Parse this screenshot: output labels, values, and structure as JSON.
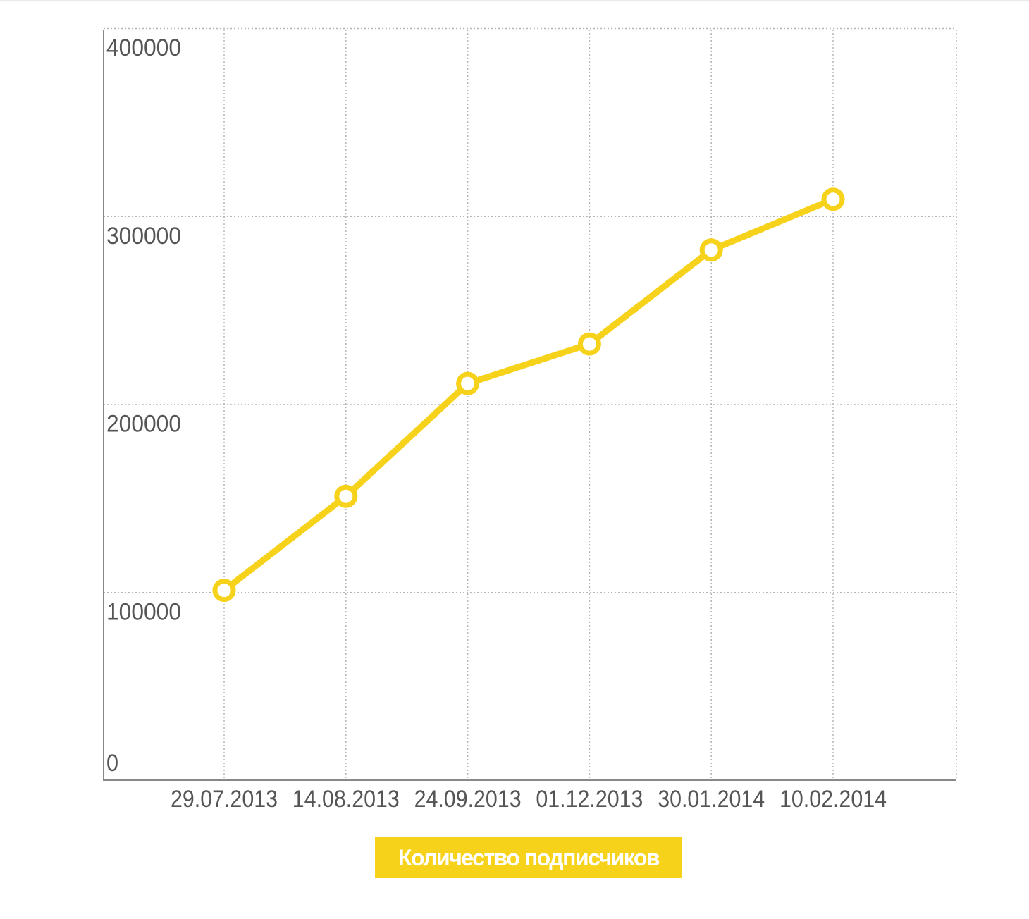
{
  "chart_data": {
    "type": "line",
    "categories": [
      "29.07.2013",
      "14.08.2013",
      "24.09.2013",
      "01.12.2013",
      "30.01.2014",
      "10.02.2014"
    ],
    "series": [
      {
        "name": "Количество подписчиков",
        "values": [
          101000,
          151000,
          211000,
          232000,
          282000,
          309000
        ],
        "color": "#f7d21b"
      }
    ],
    "ylim": [
      0,
      400000
    ],
    "yticks": [
      0,
      100000,
      200000,
      300000,
      400000
    ],
    "ytick_labels": [
      "0",
      "100000",
      "200000",
      "300000",
      "400000"
    ],
    "grid": true,
    "legend_position": "bottom-center",
    "axis_color": "#888888",
    "grid_color": "#b5b5b5",
    "text_color": "#555555"
  }
}
